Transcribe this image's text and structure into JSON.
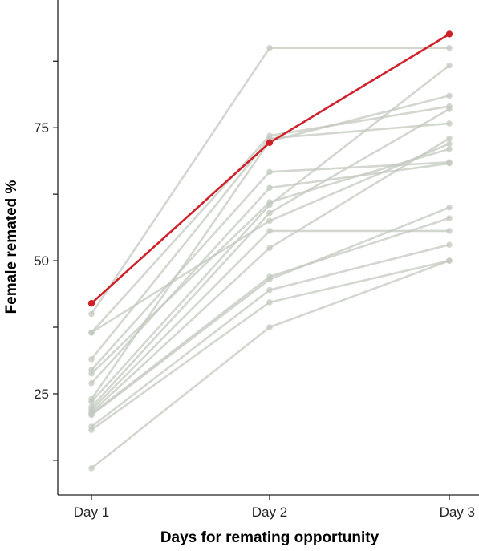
{
  "chart_data": {
    "type": "line",
    "categories": [
      "Day 1",
      "Day 2",
      "Day 3"
    ],
    "xlabel": "Days for remating opportunity",
    "ylabel": "Female remated %",
    "ylim": [
      6,
      99
    ],
    "yticks": [
      25,
      50,
      75
    ],
    "grid": false,
    "legend": "none",
    "colors": {
      "highlight": "#d0202a",
      "background": "#c3c9bf",
      "axis": "#222222"
    },
    "series": [
      {
        "highlight": true,
        "values": [
          42,
          72.2,
          92.6
        ]
      },
      {
        "values": [
          40.0,
          90.0,
          90.0
        ]
      },
      {
        "values": [
          36.5,
          73.5,
          79.0
        ]
      },
      {
        "values": [
          36.5,
          57.5,
          72.0
        ]
      },
      {
        "values": [
          31.5,
          73.0,
          75.8
        ]
      },
      {
        "values": [
          29.5,
          66.7,
          68.5
        ]
      },
      {
        "values": [
          28.8,
          61.0,
          71.0
        ]
      },
      {
        "values": [
          27.0,
          63.7,
          68.3
        ]
      },
      {
        "values": [
          24.0,
          72.5,
          81.0
        ]
      },
      {
        "values": [
          23.5,
          60.5,
          86.7
        ]
      },
      {
        "values": [
          22.5,
          59.0,
          78.5
        ]
      },
      {
        "values": [
          22.0,
          55.6,
          55.6
        ]
      },
      {
        "values": [
          21.5,
          52.4,
          73.0
        ]
      },
      {
        "values": [
          21.2,
          47.0,
          58.0
        ]
      },
      {
        "values": [
          21.0,
          46.5,
          60.0
        ]
      },
      {
        "values": [
          18.8,
          44.5,
          53.0
        ]
      },
      {
        "values": [
          18.2,
          42.2,
          50.0
        ]
      },
      {
        "values": [
          11.0,
          37.5,
          50.0
        ]
      }
    ]
  }
}
